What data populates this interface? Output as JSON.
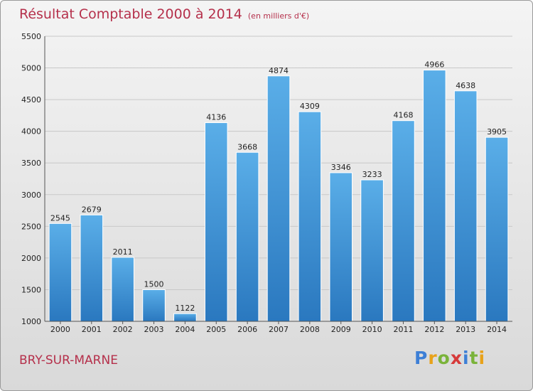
{
  "header": {
    "title": "Résultat Comptable 2000 à 2014",
    "subtitle": "(en milliers d'€)"
  },
  "footer": {
    "place": "BRY-SUR-MARNE",
    "logo_letters": [
      {
        "ch": "P",
        "color": "#3d7fd6"
      },
      {
        "ch": "r",
        "color": "#e8a21a"
      },
      {
        "ch": "o",
        "color": "#7ab33a"
      },
      {
        "ch": "x",
        "color": "#d63a3a"
      },
      {
        "ch": "i",
        "color": "#3d7fd6"
      },
      {
        "ch": "t",
        "color": "#7ab33a"
      },
      {
        "ch": "i",
        "color": "#e8a21a"
      }
    ]
  },
  "colors": {
    "bar_top": "#5aaee8",
    "bar_bottom": "#2a78bf",
    "grid": "#c8c8c8",
    "title": "#b5304b"
  },
  "chart_data": {
    "type": "bar",
    "categories": [
      "2000",
      "2001",
      "2002",
      "2003",
      "2004",
      "2005",
      "2006",
      "2007",
      "2008",
      "2009",
      "2010",
      "2011",
      "2012",
      "2013",
      "2014"
    ],
    "values": [
      2545,
      2679,
      2011,
      1500,
      1122,
      4136,
      3668,
      4874,
      4309,
      3346,
      3233,
      4168,
      4966,
      4638,
      3905
    ],
    "ylim": [
      1000,
      5500
    ],
    "yticks": [
      1000,
      1500,
      2000,
      2500,
      3000,
      3500,
      4000,
      4500,
      5000,
      5500
    ],
    "grid": true,
    "data_labels": true
  }
}
